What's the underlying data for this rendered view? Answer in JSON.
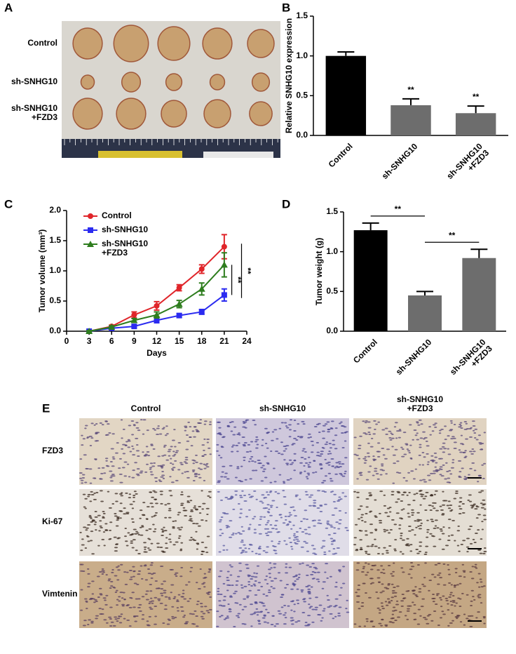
{
  "panels": {
    "A": {
      "label": "A",
      "rows": [
        "Control",
        "sh-SNHG10",
        "sh-SNHG10\n+FZD3"
      ]
    },
    "E": {
      "label": "E",
      "columns": [
        "Control",
        "sh-SNHG10",
        "sh-SNHG10\n+FZD3"
      ],
      "rows": [
        "FZD3",
        "Ki-67",
        "Vimtenin"
      ]
    }
  },
  "chart_data": [
    {
      "type": "bar",
      "panel": "B",
      "ylabel": "Relative SNHG10 expression",
      "categories": [
        "Control",
        "sh-SNHG10",
        "sh-SNHG10\n+FZD3"
      ],
      "values": [
        1.0,
        0.38,
        0.28
      ],
      "errors": [
        0.05,
        0.08,
        0.09
      ],
      "colors": [
        "#000000",
        "#6d6d6d",
        "#6d6d6d"
      ],
      "annotations": [
        "**",
        "**"
      ],
      "ylim": [
        0,
        1.5
      ],
      "yticks": [
        {
          "value": 0,
          "label": "0.0"
        },
        {
          "value": 0.5,
          "label": "0.5"
        },
        {
          "value": 1,
          "label": "1.0"
        },
        {
          "value": 1.5,
          "label": "1.5"
        }
      ]
    },
    {
      "type": "line",
      "panel": "C",
      "ylabel": "Tumor volume (mm³)",
      "xlabel": "Days",
      "x": [
        3,
        6,
        9,
        12,
        15,
        18,
        21
      ],
      "series": [
        {
          "name": "Control",
          "color": "#e0252a",
          "values": [
            0,
            0.08,
            0.27,
            0.42,
            0.72,
            1.03,
            1.4
          ],
          "errors": [
            0.01,
            0.02,
            0.05,
            0.07,
            0.05,
            0.07,
            0.2
          ]
        },
        {
          "name": "sh-SNHG10",
          "color": "#2b2bf0",
          "values": [
            0,
            0.05,
            0.08,
            0.18,
            0.26,
            0.32,
            0.6
          ],
          "errors": [
            0.01,
            0.01,
            0.02,
            0.04,
            0.03,
            0.04,
            0.1
          ]
        },
        {
          "name": "sh-SNHG10\n+FZD3",
          "color": "#2e7d1e",
          "values": [
            0,
            0.07,
            0.18,
            0.27,
            0.45,
            0.7,
            1.1
          ],
          "errors": [
            0.01,
            0.02,
            0.03,
            0.05,
            0.06,
            0.1,
            0.2
          ]
        }
      ],
      "annotations": [
        "**",
        "**"
      ],
      "xlim": [
        0,
        24
      ],
      "xticks": [
        0,
        3,
        6,
        9,
        12,
        15,
        18,
        21,
        24
      ],
      "ylim": [
        0,
        2
      ],
      "yticks": [
        {
          "value": 0,
          "label": "0.0"
        },
        {
          "value": 0.5,
          "label": "0.5"
        },
        {
          "value": 1,
          "label": "1.0"
        },
        {
          "value": 1.5,
          "label": "1.5"
        },
        {
          "value": 2,
          "label": "2.0"
        }
      ]
    },
    {
      "type": "bar",
      "panel": "D",
      "ylabel": "Tumor weight (g)",
      "categories": [
        "Control",
        "sh-SNHG10",
        "sh-SNHG10\n+FZD3"
      ],
      "values": [
        1.27,
        0.45,
        0.92
      ],
      "errors": [
        0.09,
        0.05,
        0.11
      ],
      "colors": [
        "#000000",
        "#6d6d6d",
        "#6d6d6d"
      ],
      "annotations": [
        "**",
        "**"
      ],
      "ylim": [
        0,
        1.5
      ],
      "yticks": [
        {
          "value": 0,
          "label": "0.0"
        },
        {
          "value": 0.5,
          "label": "0.5"
        },
        {
          "value": 1,
          "label": "1.0"
        },
        {
          "value": 1.5,
          "label": "1.5"
        }
      ]
    }
  ]
}
